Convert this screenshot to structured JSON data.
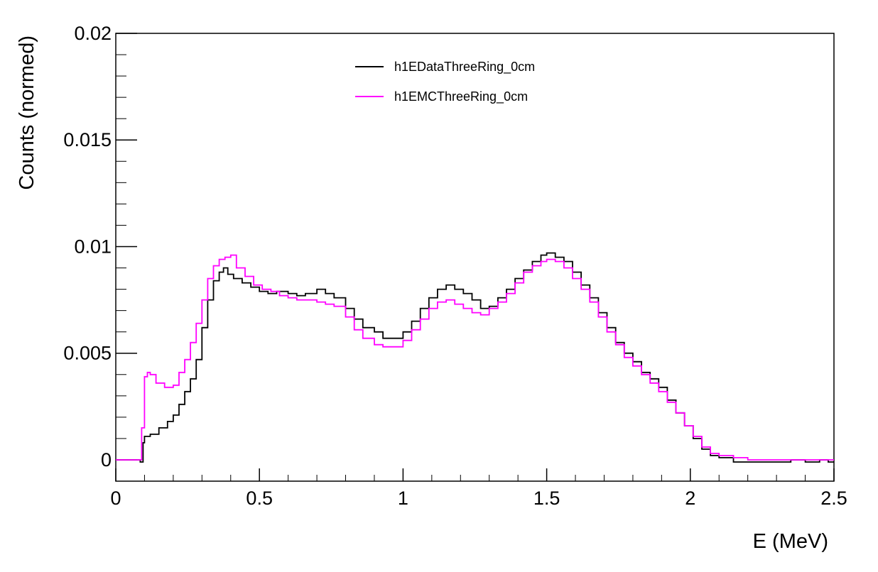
{
  "chart_data": {
    "type": "line",
    "style": "step",
    "xlabel": "E (MeV)",
    "ylabel": "Counts (normed)",
    "xlim": [
      0,
      2.5
    ],
    "ylim": [
      -0.001,
      0.02
    ],
    "x_ticks": [
      {
        "value": 0,
        "label": "0"
      },
      {
        "value": 0.5,
        "label": "0.5"
      },
      {
        "value": 1,
        "label": "1"
      },
      {
        "value": 1.5,
        "label": "1.5"
      },
      {
        "value": 2,
        "label": "2"
      },
      {
        "value": 2.5,
        "label": "2.5"
      }
    ],
    "y_ticks": [
      {
        "value": 0,
        "label": "0"
      },
      {
        "value": 0.005,
        "label": "0.005"
      },
      {
        "value": 0.01,
        "label": "0.01"
      },
      {
        "value": 0.015,
        "label": "0.015"
      },
      {
        "value": 0.02,
        "label": "0.02"
      }
    ],
    "grid": false,
    "legend_position": "top-center",
    "series": [
      {
        "name": "h1EDataThreeRing_0cm",
        "color": "#000000",
        "points": [
          [
            0,
            0
          ],
          [
            0.075,
            0
          ],
          [
            0.085,
            -0.0001
          ],
          [
            0.095,
            0.0008
          ],
          [
            0.1,
            0.0011
          ],
          [
            0.12,
            0.0012
          ],
          [
            0.15,
            0.0015
          ],
          [
            0.18,
            0.0018
          ],
          [
            0.2,
            0.0021
          ],
          [
            0.22,
            0.0026
          ],
          [
            0.24,
            0.0032
          ],
          [
            0.26,
            0.0038
          ],
          [
            0.28,
            0.0047
          ],
          [
            0.3,
            0.0062
          ],
          [
            0.32,
            0.0075
          ],
          [
            0.34,
            0.0084
          ],
          [
            0.36,
            0.0088
          ],
          [
            0.375,
            0.009
          ],
          [
            0.39,
            0.0087
          ],
          [
            0.41,
            0.0085
          ],
          [
            0.44,
            0.0083
          ],
          [
            0.47,
            0.0081
          ],
          [
            0.5,
            0.0079
          ],
          [
            0.53,
            0.0078
          ],
          [
            0.56,
            0.0079
          ],
          [
            0.6,
            0.0078
          ],
          [
            0.63,
            0.0077
          ],
          [
            0.66,
            0.0078
          ],
          [
            0.7,
            0.008
          ],
          [
            0.73,
            0.0078
          ],
          [
            0.76,
            0.0076
          ],
          [
            0.8,
            0.0071
          ],
          [
            0.83,
            0.0066
          ],
          [
            0.86,
            0.0062
          ],
          [
            0.9,
            0.006
          ],
          [
            0.93,
            0.0057
          ],
          [
            0.96,
            0.0057
          ],
          [
            1.0,
            0.006
          ],
          [
            1.03,
            0.0065
          ],
          [
            1.06,
            0.0071
          ],
          [
            1.09,
            0.0076
          ],
          [
            1.12,
            0.008
          ],
          [
            1.15,
            0.0082
          ],
          [
            1.18,
            0.008
          ],
          [
            1.21,
            0.0078
          ],
          [
            1.24,
            0.0075
          ],
          [
            1.27,
            0.0071
          ],
          [
            1.3,
            0.0072
          ],
          [
            1.33,
            0.0076
          ],
          [
            1.36,
            0.008
          ],
          [
            1.39,
            0.0085
          ],
          [
            1.42,
            0.0089
          ],
          [
            1.45,
            0.0093
          ],
          [
            1.48,
            0.0096
          ],
          [
            1.5,
            0.0097
          ],
          [
            1.53,
            0.0095
          ],
          [
            1.56,
            0.0093
          ],
          [
            1.59,
            0.0088
          ],
          [
            1.62,
            0.0082
          ],
          [
            1.65,
            0.0076
          ],
          [
            1.68,
            0.0069
          ],
          [
            1.71,
            0.0062
          ],
          [
            1.74,
            0.0055
          ],
          [
            1.77,
            0.005
          ],
          [
            1.8,
            0.0046
          ],
          [
            1.83,
            0.0041
          ],
          [
            1.86,
            0.0038
          ],
          [
            1.89,
            0.0034
          ],
          [
            1.92,
            0.0028
          ],
          [
            1.95,
            0.0022
          ],
          [
            1.98,
            0.0016
          ],
          [
            2.01,
            0.001
          ],
          [
            2.04,
            0.0005
          ],
          [
            2.07,
            0.0002
          ],
          [
            2.1,
            0.0001
          ],
          [
            2.15,
            -0.0001
          ],
          [
            2.2,
            -0.0001
          ],
          [
            2.3,
            -0.0001
          ],
          [
            2.35,
            0
          ],
          [
            2.4,
            -0.0001
          ],
          [
            2.45,
            0
          ],
          [
            2.48,
            -0.0001
          ],
          [
            2.5,
            -0.0001
          ]
        ]
      },
      {
        "name": "h1EMCThreeRing_0cm",
        "color": "#ff00ff",
        "points": [
          [
            0,
            0
          ],
          [
            0.08,
            0
          ],
          [
            0.09,
            0.0015
          ],
          [
            0.1,
            0.0039
          ],
          [
            0.11,
            0.0041
          ],
          [
            0.12,
            0.004
          ],
          [
            0.14,
            0.0036
          ],
          [
            0.17,
            0.0034
          ],
          [
            0.2,
            0.0035
          ],
          [
            0.22,
            0.0041
          ],
          [
            0.24,
            0.0047
          ],
          [
            0.26,
            0.0055
          ],
          [
            0.28,
            0.0064
          ],
          [
            0.3,
            0.0075
          ],
          [
            0.32,
            0.0085
          ],
          [
            0.34,
            0.0091
          ],
          [
            0.36,
            0.0094
          ],
          [
            0.38,
            0.0095
          ],
          [
            0.4,
            0.0096
          ],
          [
            0.42,
            0.009
          ],
          [
            0.45,
            0.0086
          ],
          [
            0.48,
            0.0082
          ],
          [
            0.51,
            0.008
          ],
          [
            0.54,
            0.0079
          ],
          [
            0.57,
            0.0077
          ],
          [
            0.6,
            0.0076
          ],
          [
            0.63,
            0.0075
          ],
          [
            0.66,
            0.0075
          ],
          [
            0.7,
            0.0074
          ],
          [
            0.73,
            0.0073
          ],
          [
            0.76,
            0.0072
          ],
          [
            0.8,
            0.0067
          ],
          [
            0.83,
            0.0061
          ],
          [
            0.86,
            0.0057
          ],
          [
            0.9,
            0.0054
          ],
          [
            0.93,
            0.0053
          ],
          [
            0.96,
            0.0053
          ],
          [
            1.0,
            0.0056
          ],
          [
            1.03,
            0.0061
          ],
          [
            1.06,
            0.0066
          ],
          [
            1.09,
            0.0071
          ],
          [
            1.12,
            0.0074
          ],
          [
            1.15,
            0.0075
          ],
          [
            1.18,
            0.0073
          ],
          [
            1.21,
            0.0071
          ],
          [
            1.24,
            0.0069
          ],
          [
            1.27,
            0.0068
          ],
          [
            1.3,
            0.0071
          ],
          [
            1.33,
            0.0074
          ],
          [
            1.36,
            0.0078
          ],
          [
            1.39,
            0.0083
          ],
          [
            1.42,
            0.0088
          ],
          [
            1.45,
            0.0091
          ],
          [
            1.48,
            0.0093
          ],
          [
            1.5,
            0.0094
          ],
          [
            1.53,
            0.0093
          ],
          [
            1.56,
            0.009
          ],
          [
            1.59,
            0.0085
          ],
          [
            1.62,
            0.008
          ],
          [
            1.65,
            0.0074
          ],
          [
            1.68,
            0.0067
          ],
          [
            1.71,
            0.006
          ],
          [
            1.74,
            0.0054
          ],
          [
            1.77,
            0.0048
          ],
          [
            1.8,
            0.0044
          ],
          [
            1.83,
            0.004
          ],
          [
            1.86,
            0.0036
          ],
          [
            1.89,
            0.0032
          ],
          [
            1.92,
            0.0027
          ],
          [
            1.95,
            0.0022
          ],
          [
            1.98,
            0.0016
          ],
          [
            2.01,
            0.0011
          ],
          [
            2.04,
            0.0006
          ],
          [
            2.07,
            0.0003
          ],
          [
            2.1,
            0.0002
          ],
          [
            2.15,
            0.0001
          ],
          [
            2.2,
            0
          ],
          [
            2.3,
            0
          ],
          [
            2.4,
            0
          ],
          [
            2.5,
            0
          ]
        ]
      }
    ]
  }
}
